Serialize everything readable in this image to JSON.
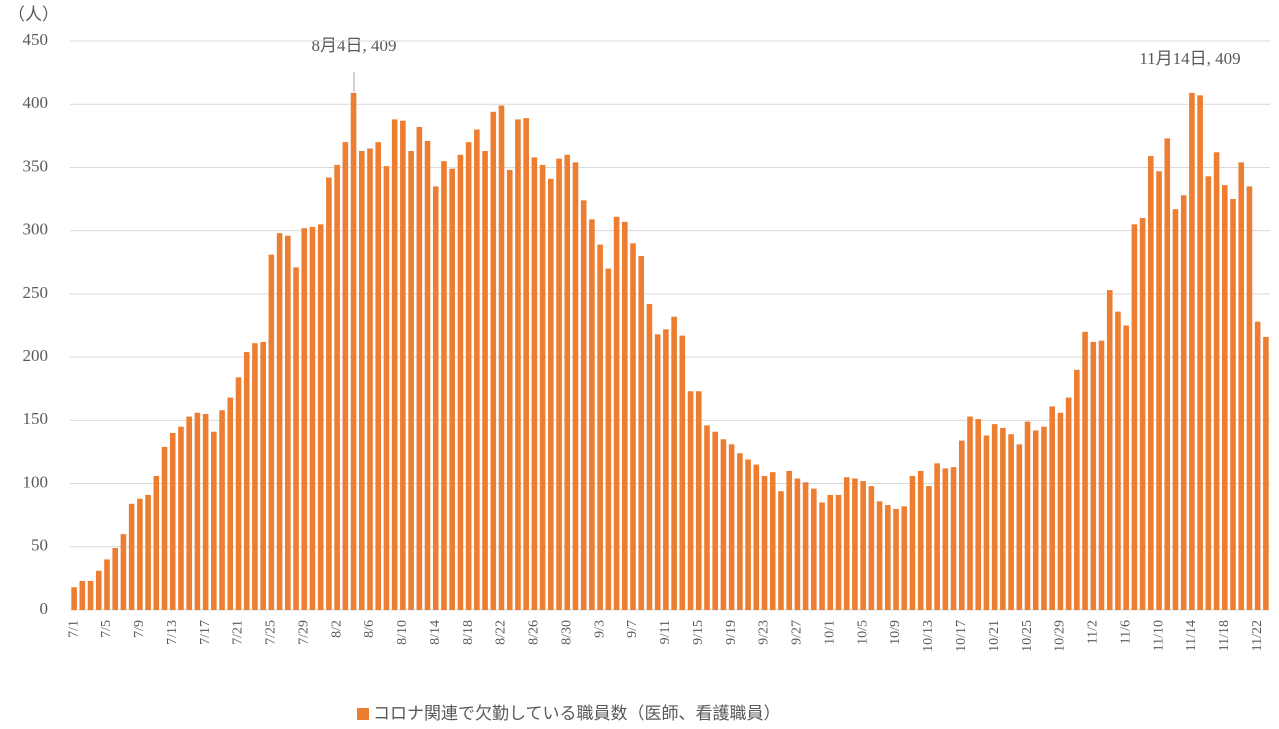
{
  "chart_data": {
    "type": "bar",
    "y_label": "（人）",
    "color": "#ed7d31",
    "series": [
      {
        "name": "コロナ関連で欠勤している職員数（医師、看護職員）",
        "color": "#ed7d31",
        "values": [
          18,
          23,
          23,
          31,
          40,
          49,
          60,
          84,
          88,
          91,
          106,
          129,
          140,
          145,
          153,
          156,
          155,
          141,
          158,
          168,
          184,
          204,
          211,
          212,
          281,
          298,
          296,
          271,
          302,
          303,
          305,
          342,
          352,
          370,
          409,
          363,
          365,
          370,
          351,
          388,
          387,
          363,
          382,
          371,
          335,
          355,
          349,
          360,
          370,
          380,
          363,
          394,
          399,
          348,
          388,
          389,
          358,
          352,
          341,
          357,
          360,
          354,
          324,
          309,
          289,
          270,
          311,
          307,
          290,
          280,
          242,
          218,
          222,
          232,
          217,
          173,
          173,
          146,
          141,
          135,
          131,
          124,
          119,
          115,
          106,
          109,
          94,
          110,
          104,
          101,
          96,
          85,
          91,
          91,
          105,
          104,
          102,
          98,
          86,
          83,
          80,
          82,
          106,
          110,
          98,
          116,
          112,
          113,
          134,
          153,
          151,
          138,
          147,
          144,
          139,
          131,
          149,
          142,
          145,
          161,
          156,
          168,
          190,
          220,
          212,
          213,
          253,
          236,
          225,
          305,
          310,
          359,
          347,
          373,
          317,
          328,
          409,
          407,
          343,
          362,
          336,
          325,
          354,
          335,
          228,
          216
        ]
      }
    ],
    "categories": [
      "7/1",
      null,
      null,
      null,
      "7/5",
      null,
      null,
      null,
      "7/9",
      null,
      null,
      null,
      "7/13",
      null,
      null,
      null,
      "7/17",
      null,
      null,
      null,
      "7/21",
      null,
      null,
      null,
      "7/25",
      null,
      null,
      null,
      "7/29",
      null,
      null,
      null,
      "8/2",
      null,
      null,
      null,
      "8/6",
      null,
      null,
      null,
      "8/10",
      null,
      null,
      null,
      "8/14",
      null,
      null,
      null,
      "8/18",
      null,
      null,
      null,
      "8/22",
      null,
      null,
      null,
      "8/26",
      null,
      null,
      null,
      "8/30",
      null,
      null,
      null,
      "9/3",
      null,
      null,
      null,
      "9/7",
      null,
      null,
      null,
      "9/11",
      null,
      null,
      null,
      "9/15",
      null,
      null,
      null,
      "9/19",
      null,
      null,
      null,
      "9/23",
      null,
      null,
      null,
      "9/27",
      null,
      null,
      null,
      "10/1",
      null,
      null,
      null,
      "10/5",
      null,
      null,
      null,
      "10/9",
      null,
      null,
      null,
      "10/13",
      null,
      null,
      null,
      "10/17",
      null,
      null,
      null,
      "10/21",
      null,
      null,
      null,
      "10/25",
      null,
      null,
      null,
      "10/29",
      null,
      null,
      null,
      "11/2",
      null,
      null,
      null,
      "11/6",
      null,
      null,
      null,
      "11/10",
      null,
      null,
      null,
      "11/14",
      null,
      null,
      null,
      "11/18",
      null,
      null,
      null,
      "11/22",
      null
    ],
    "annotations": [
      "8月4日, 409",
      "11月14日, 409"
    ],
    "ylim": [
      0,
      450
    ],
    "yticks": [
      0,
      50,
      100,
      150,
      200,
      250,
      300,
      350,
      400,
      450
    ],
    "grid": true,
    "legend": "bottom"
  }
}
